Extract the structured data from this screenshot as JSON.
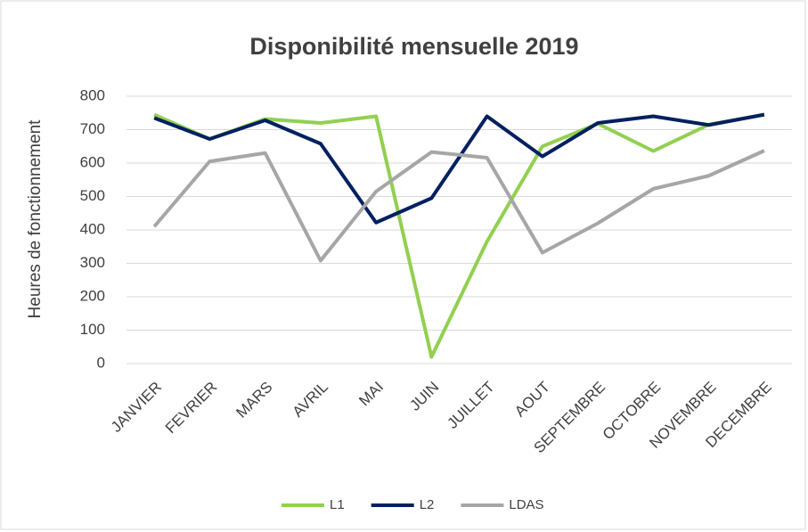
{
  "chart_data": {
    "type": "line",
    "title": "Disponibilité mensuelle 2019",
    "y_label": "Heures de fonctionnement",
    "categories": [
      "JANVIER",
      "FEVRIER",
      "MARS",
      "AVRIL",
      "MAI",
      "JUIN",
      "JUILLET",
      "AOUT",
      "SEPTEMBRE",
      "OCTOBRE",
      "NOVEMBRE",
      "DECEMBRE"
    ],
    "series": [
      {
        "name": "L1",
        "color": "#92d050",
        "values": [
          745,
          672,
          732,
          720,
          740,
          20,
          365,
          650,
          718,
          636,
          715,
          745
        ]
      },
      {
        "name": "L2",
        "color": "#002060",
        "values": [
          735,
          672,
          728,
          658,
          422,
          495,
          740,
          620,
          720,
          740,
          714,
          745
        ]
      },
      {
        "name": "LDAS",
        "color": "#a6a6a6",
        "values": [
          410,
          605,
          630,
          308,
          515,
          633,
          616,
          332,
          420,
          523,
          562,
          637
        ]
      }
    ],
    "ylim": [
      0,
      800
    ],
    "yticks": [
      0,
      100,
      200,
      300,
      400,
      500,
      600,
      700,
      800
    ],
    "grid": true,
    "legend": "bottom"
  }
}
